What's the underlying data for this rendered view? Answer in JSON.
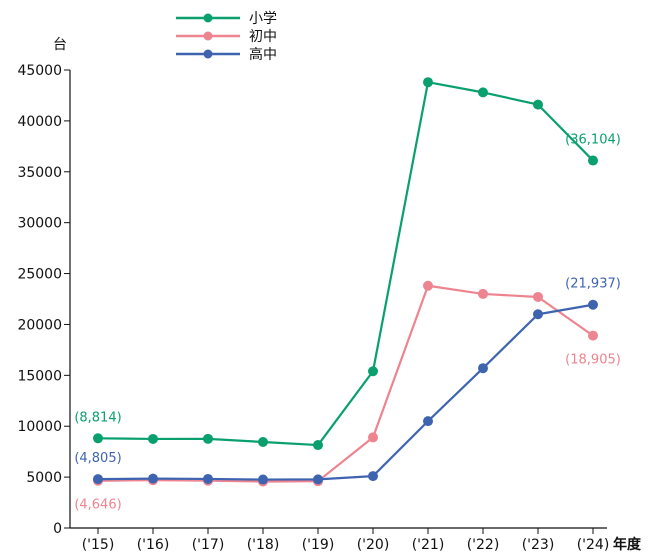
{
  "chart_data": {
    "type": "line",
    "title": "",
    "ylabel": "台",
    "xlabel": "年度",
    "ylim": [
      0,
      45000
    ],
    "yticks": [
      0,
      5000,
      10000,
      15000,
      20000,
      25000,
      30000,
      35000,
      40000,
      45000
    ],
    "categories": [
      "('15)",
      "('16)",
      "('17)",
      "('18)",
      "('19)",
      "('20)",
      "('21)",
      "('22)",
      "('23)",
      "('24)"
    ],
    "grid": false,
    "legend_position": "top-left",
    "series": [
      {
        "name": "小学",
        "color": "#0aa06e",
        "values": [
          8814,
          8750,
          8760,
          8450,
          8150,
          15400,
          43800,
          42800,
          41600,
          36104
        ]
      },
      {
        "name": "初中",
        "color": "#ee8490",
        "values": [
          4646,
          4700,
          4650,
          4560,
          4600,
          8900,
          23800,
          23000,
          22700,
          18905
        ]
      },
      {
        "name": "高中",
        "color": "#3e64b0",
        "values": [
          4805,
          4850,
          4820,
          4760,
          4780,
          5100,
          10500,
          15700,
          21000,
          21937
        ]
      }
    ],
    "annotations": [
      {
        "series": 0,
        "point": 0,
        "text": "(8,814)",
        "place": "above"
      },
      {
        "series": 2,
        "point": 0,
        "text": "(4,805)",
        "place": "above"
      },
      {
        "series": 1,
        "point": 0,
        "text": "(4,646)",
        "place": "below"
      },
      {
        "series": 0,
        "point": 9,
        "text": "(36,104)",
        "place": "above"
      },
      {
        "series": 2,
        "point": 9,
        "text": "(21,937)",
        "place": "above"
      },
      {
        "series": 1,
        "point": 9,
        "text": "(18,905)",
        "place": "below"
      }
    ]
  }
}
